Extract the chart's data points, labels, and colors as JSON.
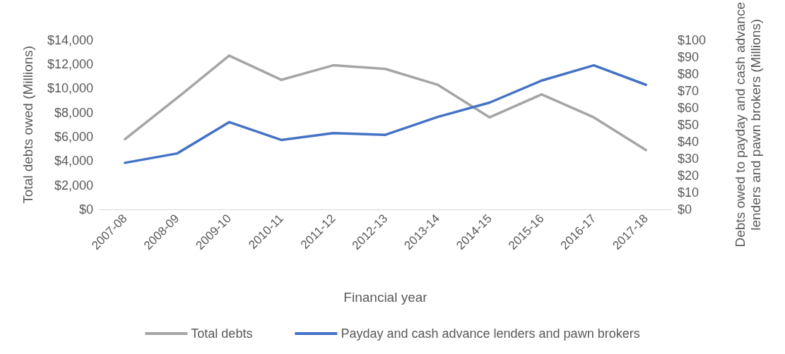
{
  "chart_data": {
    "type": "line",
    "xlabel": "Financial year",
    "ylabel": "Total debts owed (Millions)",
    "y2label": "Debts owed to payday and cash advance lenders and pawn brokers (Millions)",
    "categories": [
      "2007-08",
      "2008-09",
      "2009-10",
      "2010-11",
      "2011-12",
      "2012-13",
      "2013-14",
      "2014-15",
      "2015-16",
      "2016-17",
      "2017-18"
    ],
    "series": [
      {
        "name": "Total debts",
        "color": "#a5a5a5",
        "values": [
          5800,
          9200,
          12700,
          10700,
          11900,
          11600,
          10300,
          7600,
          9500,
          7600,
          4900
        ]
      },
      {
        "name": "Payday and cash advance lenders and pawn brokers",
        "color": "#4472c4",
        "axis": "y2",
        "values": [
          27.5,
          33,
          51.5,
          41,
          45,
          44,
          54.5,
          63,
          76,
          85,
          73.5
        ]
      }
    ],
    "ylim": [
      0,
      14000
    ],
    "yticks": [
      {
        "value": 0,
        "label": "$0"
      },
      {
        "value": 2000,
        "label": "$2,000"
      },
      {
        "value": 4000,
        "label": "$4,000"
      },
      {
        "value": 6000,
        "label": "$6,000"
      },
      {
        "value": 8000,
        "label": "$8,000"
      },
      {
        "value": 10000,
        "label": "$10,000"
      },
      {
        "value": 12000,
        "label": "$12,000"
      },
      {
        "value": 14000,
        "label": "$14,000"
      }
    ],
    "y2lim": [
      0,
      100
    ],
    "y2ticks": [
      {
        "value": 0,
        "label": "$0"
      },
      {
        "value": 10,
        "label": "$10"
      },
      {
        "value": 20,
        "label": "$20"
      },
      {
        "value": 30,
        "label": "$30"
      },
      {
        "value": 40,
        "label": "$40"
      },
      {
        "value": 50,
        "label": "$50"
      },
      {
        "value": 60,
        "label": "$60"
      },
      {
        "value": 70,
        "label": "$70"
      },
      {
        "value": 80,
        "label": "$80"
      },
      {
        "value": 90,
        "label": "$90"
      },
      {
        "value": 100,
        "label": "$100"
      }
    ],
    "grid": false,
    "legend": "bottom",
    "marker": "none",
    "line_style": "solid"
  }
}
